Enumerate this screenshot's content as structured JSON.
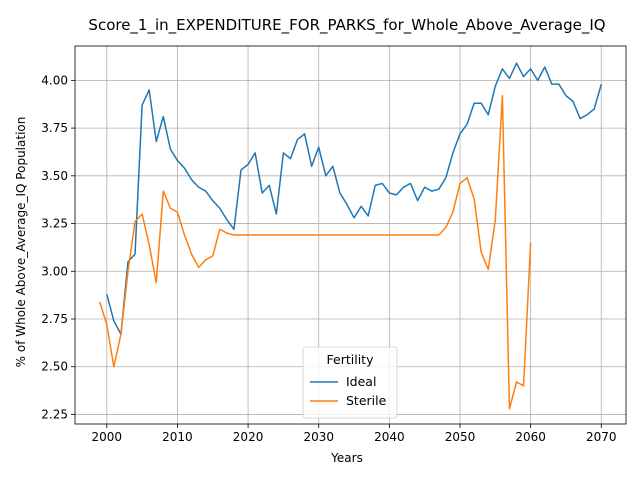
{
  "chart_data": {
    "type": "line",
    "title": "Score_1_in_EXPENDITURE_FOR_PARKS_for_Whole_Above_Average_IQ",
    "xlabel": "Years",
    "ylabel": "% of Whole Above_Average_IQ Population",
    "xlim": [
      1995.5,
      2073.5
    ],
    "ylim": [
      2.2,
      4.18
    ],
    "xticks": [
      2000,
      2010,
      2020,
      2030,
      2040,
      2050,
      2060,
      2070
    ],
    "xtick_labels": [
      "2000",
      "2010",
      "2020",
      "2030",
      "2040",
      "2050",
      "2060",
      "2070"
    ],
    "yticks": [
      2.25,
      2.5,
      2.75,
      3.0,
      3.25,
      3.5,
      3.75,
      4.0
    ],
    "ytick_labels": [
      "2.25",
      "2.50",
      "2.75",
      "3.00",
      "3.25",
      "3.50",
      "3.75",
      "4.00"
    ],
    "grid": true,
    "legend": {
      "title": "Fertility",
      "placement": "bottom-center"
    },
    "series": [
      {
        "name": "Ideal",
        "color": "#1f77b4",
        "points": [
          [
            2000,
            2.88
          ],
          [
            2001,
            2.74
          ],
          [
            2002,
            2.67
          ],
          [
            2003,
            3.05
          ],
          [
            2004,
            3.09
          ],
          [
            2005,
            3.87
          ],
          [
            2006,
            3.95
          ],
          [
            2007,
            3.68
          ],
          [
            2008,
            3.81
          ],
          [
            2009,
            3.64
          ],
          [
            2010,
            3.58
          ],
          [
            2011,
            3.54
          ],
          [
            2012,
            3.48
          ],
          [
            2013,
            3.44
          ],
          [
            2014,
            3.42
          ],
          [
            2015,
            3.37
          ],
          [
            2016,
            3.33
          ],
          [
            2017,
            3.27
          ],
          [
            2018,
            3.22
          ],
          [
            2019,
            3.53
          ],
          [
            2020,
            3.56
          ],
          [
            2021,
            3.62
          ],
          [
            2022,
            3.41
          ],
          [
            2023,
            3.45
          ],
          [
            2024,
            3.3
          ],
          [
            2025,
            3.62
          ],
          [
            2026,
            3.59
          ],
          [
            2027,
            3.69
          ],
          [
            2028,
            3.72
          ],
          [
            2029,
            3.55
          ],
          [
            2030,
            3.65
          ],
          [
            2031,
            3.5
          ],
          [
            2032,
            3.55
          ],
          [
            2033,
            3.41
          ],
          [
            2034,
            3.35
          ],
          [
            2035,
            3.28
          ],
          [
            2036,
            3.34
          ],
          [
            2037,
            3.29
          ],
          [
            2038,
            3.45
          ],
          [
            2039,
            3.46
          ],
          [
            2040,
            3.41
          ],
          [
            2041,
            3.4
          ],
          [
            2042,
            3.44
          ],
          [
            2043,
            3.46
          ],
          [
            2044,
            3.37
          ],
          [
            2045,
            3.44
          ],
          [
            2046,
            3.42
          ],
          [
            2047,
            3.43
          ],
          [
            2048,
            3.49
          ],
          [
            2049,
            3.62
          ],
          [
            2050,
            3.72
          ],
          [
            2051,
            3.77
          ],
          [
            2052,
            3.88
          ],
          [
            2053,
            3.88
          ],
          [
            2054,
            3.82
          ],
          [
            2055,
            3.97
          ],
          [
            2056,
            4.06
          ],
          [
            2057,
            4.01
          ],
          [
            2058,
            4.09
          ],
          [
            2059,
            4.02
          ],
          [
            2060,
            4.06
          ],
          [
            2061,
            4.0
          ],
          [
            2062,
            4.07
          ],
          [
            2063,
            3.98
          ],
          [
            2064,
            3.98
          ],
          [
            2065,
            3.92
          ],
          [
            2066,
            3.89
          ],
          [
            2067,
            3.8
          ],
          [
            2068,
            3.82
          ],
          [
            2069,
            3.85
          ],
          [
            2070,
            3.98
          ]
        ]
      },
      {
        "name": "Sterile",
        "color": "#ff7f0e",
        "points": [
          [
            1999,
            2.84
          ],
          [
            2000,
            2.72
          ],
          [
            2001,
            2.5
          ],
          [
            2002,
            2.67
          ],
          [
            2003,
            3.0
          ],
          [
            2004,
            3.26
          ],
          [
            2005,
            3.3
          ],
          [
            2006,
            3.14
          ],
          [
            2007,
            2.94
          ],
          [
            2008,
            3.42
          ],
          [
            2009,
            3.33
          ],
          [
            2010,
            3.31
          ],
          [
            2011,
            3.19
          ],
          [
            2012,
            3.09
          ],
          [
            2013,
            3.02
          ],
          [
            2014,
            3.06
          ],
          [
            2015,
            3.08
          ],
          [
            2016,
            3.22
          ],
          [
            2017,
            3.2
          ],
          [
            2018,
            3.19
          ],
          [
            2019,
            3.19
          ],
          [
            2020,
            3.19
          ],
          [
            2025,
            3.19
          ],
          [
            2030,
            3.19
          ],
          [
            2035,
            3.19
          ],
          [
            2040,
            3.19
          ],
          [
            2045,
            3.19
          ],
          [
            2047,
            3.19
          ],
          [
            2048,
            3.23
          ],
          [
            2049,
            3.31
          ],
          [
            2050,
            3.46
          ],
          [
            2051,
            3.49
          ],
          [
            2052,
            3.38
          ],
          [
            2053,
            3.1
          ],
          [
            2054,
            3.01
          ],
          [
            2055,
            3.27
          ],
          [
            2056,
            3.92
          ],
          [
            2057,
            2.28
          ],
          [
            2058,
            2.42
          ],
          [
            2059,
            2.4
          ],
          [
            2060,
            3.15
          ]
        ]
      }
    ]
  }
}
